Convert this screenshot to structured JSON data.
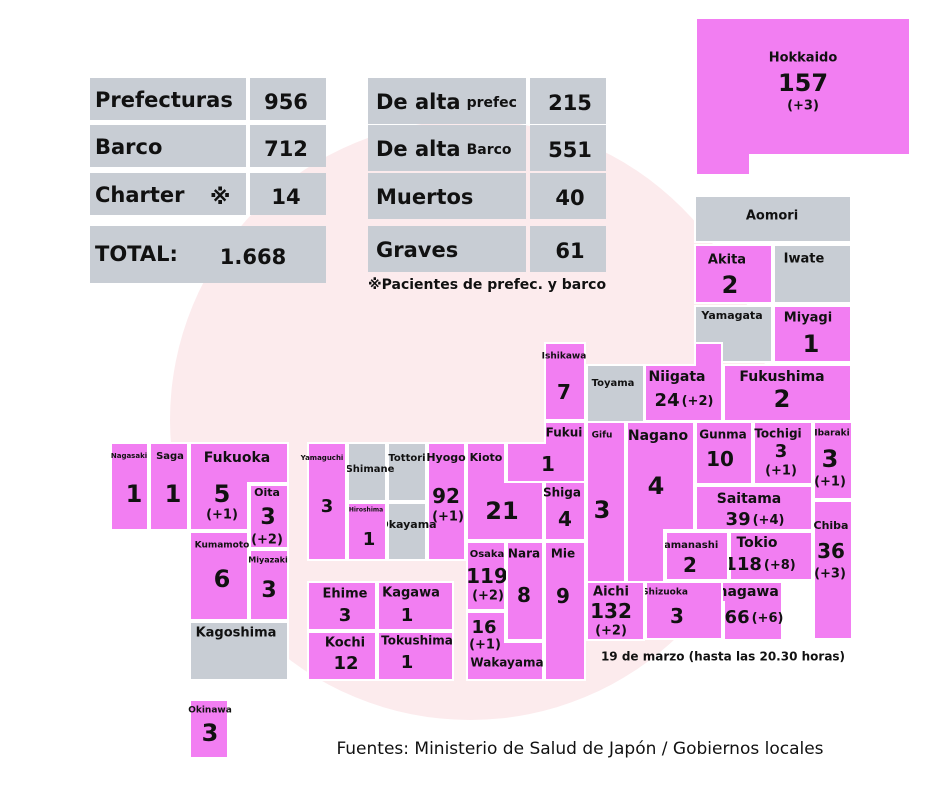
{
  "summary_left": [
    {
      "label": "Prefecturas",
      "value": 956
    },
    {
      "label": "Barco",
      "value": 712
    },
    {
      "label": "Charter",
      "mark": "※",
      "value": 14
    },
    {
      "label": "TOTAL:",
      "value": "1.668"
    }
  ],
  "summary_right": [
    {
      "label": "De alta",
      "sub": "prefec",
      "value": 215
    },
    {
      "label": "De alta",
      "sub": "Barco",
      "value": 551
    },
    {
      "label": "Muertos",
      "value": 40
    },
    {
      "label": "Graves",
      "value": 61
    }
  ],
  "note": "※Pacientes de prefec. y barco",
  "prefectures": [
    {
      "name": "Hokkaido",
      "cases": 157,
      "new": "(+3)"
    },
    {
      "name": "Aomori"
    },
    {
      "name": "Akita",
      "cases": 2
    },
    {
      "name": "Iwate"
    },
    {
      "name": "Yamagata"
    },
    {
      "name": "Miyagi",
      "cases": 1
    },
    {
      "name": "Ishikawa",
      "cases": 7
    },
    {
      "name": "Toyama"
    },
    {
      "name": "Niigata",
      "cases": 24,
      "new": "(+2)"
    },
    {
      "name": "Fukushima",
      "cases": 2
    },
    {
      "name": "Ibaraki",
      "cases": 3,
      "new": "(+1)"
    },
    {
      "name": "Tochigi",
      "cases": 3,
      "new": "(+1)"
    },
    {
      "name": "Gunma",
      "cases": 10
    },
    {
      "name": "Saitama",
      "cases": 39,
      "new": "(+4)"
    },
    {
      "name": "Chiba",
      "cases": 36,
      "new": "(+3)"
    },
    {
      "name": "Tokio",
      "cases": 118,
      "new": "(+8)"
    },
    {
      "name": "Kanagawa",
      "cases": 66,
      "new": "(+6)"
    },
    {
      "name": "Yamanashi",
      "cases": 2
    },
    {
      "name": "Nagano",
      "cases": 4
    },
    {
      "name": "Shizuoka",
      "cases": 3
    },
    {
      "name": "Aichi",
      "cases": 132,
      "new": "(+2)"
    },
    {
      "name": "Gifu",
      "cases": 3
    },
    {
      "name": "Fukui",
      "cases": 1
    },
    {
      "name": "Mie",
      "cases": 9
    },
    {
      "name": "Shiga",
      "cases": 4
    },
    {
      "name": "Kioto",
      "cases": 21
    },
    {
      "name": "Osaka",
      "cases": 119,
      "new": "(+2)"
    },
    {
      "name": "Nara",
      "cases": 8
    },
    {
      "name": "Wakayama",
      "cases": 16,
      "new": "(+1)"
    },
    {
      "name": "Hyogo",
      "cases": 92,
      "new": "(+1)"
    },
    {
      "name": "Tottori"
    },
    {
      "name": "Okayama"
    },
    {
      "name": "Shimane"
    },
    {
      "name": "Hiroshima",
      "cases": 1
    },
    {
      "name": "Yamaguchi",
      "cases": 3
    },
    {
      "name": "Ehime",
      "cases": 3
    },
    {
      "name": "Kagawa",
      "cases": 1
    },
    {
      "name": "Kochi",
      "cases": 12
    },
    {
      "name": "Tokushima",
      "cases": 1
    },
    {
      "name": "Nagasaki",
      "cases": 1
    },
    {
      "name": "Saga",
      "cases": 1
    },
    {
      "name": "Fukuoka",
      "cases": 5,
      "new": "(+1)"
    },
    {
      "name": "Oita",
      "cases": 3,
      "new": "(+2)"
    },
    {
      "name": "Kumamoto",
      "cases": 6
    },
    {
      "name": "Miyazaki",
      "cases": 3
    },
    {
      "name": "Kagoshima"
    },
    {
      "name": "Okinawa",
      "cases": 3
    }
  ],
  "date_note": "19 de marzo (hasta las 20.30 horas)",
  "source": "Fuentes: Ministerio de Salud de Japón / Gobiernos locales"
}
